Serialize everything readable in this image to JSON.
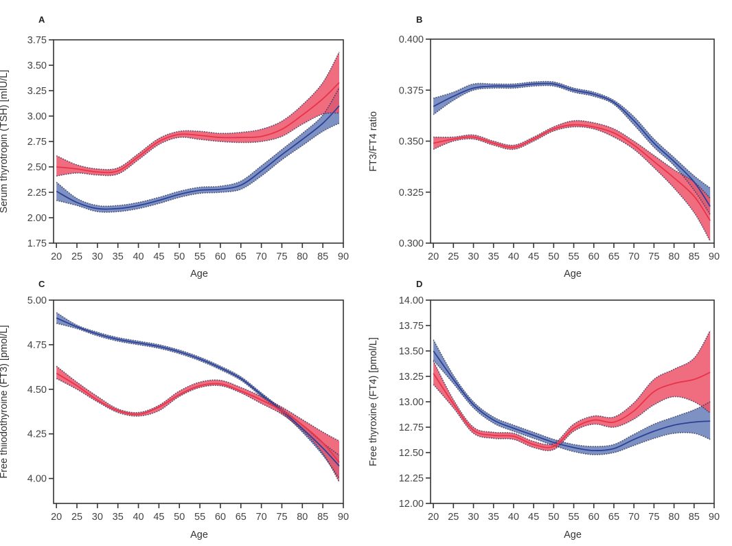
{
  "figure": {
    "colors": {
      "series_red": "#e8334a",
      "band_red": "#ec5468",
      "series_blue": "#2d3f96",
      "band_blue": "#6f86bd",
      "band_overlap": "#d95ab0",
      "dots": "#2b2f55"
    }
  },
  "chart_data": [
    {
      "id": "A",
      "panel_label": "A",
      "type": "line",
      "title": "",
      "xlabel": "Age",
      "ylabel": "Serum thyrotropin (TSH) [mIU/L]",
      "xlim": [
        19.3,
        90
      ],
      "ylim": [
        1.75,
        3.75
      ],
      "xticks": [
        "20",
        "25",
        "30",
        "35",
        "40",
        "45",
        "50",
        "55",
        "60",
        "65",
        "70",
        "75",
        "80",
        "85",
        "90"
      ],
      "yticks": [
        "1.75",
        "2.00",
        "2.25",
        "2.50",
        "2.75",
        "3.00",
        "3.25",
        "3.50",
        "3.75"
      ],
      "x": [
        20,
        25,
        30,
        35,
        40,
        45,
        50,
        55,
        60,
        65,
        70,
        75,
        80,
        85,
        89
      ],
      "series": [
        {
          "name": "red",
          "values": [
            2.5,
            2.48,
            2.45,
            2.46,
            2.6,
            2.75,
            2.82,
            2.81,
            2.79,
            2.79,
            2.8,
            2.87,
            3.01,
            3.17,
            3.33
          ],
          "ci_lower": [
            2.41,
            2.44,
            2.42,
            2.43,
            2.57,
            2.72,
            2.79,
            2.77,
            2.75,
            2.74,
            2.75,
            2.8,
            2.92,
            3.02,
            3.03
          ],
          "ci_upper": [
            2.61,
            2.52,
            2.48,
            2.49,
            2.63,
            2.78,
            2.85,
            2.85,
            2.83,
            2.84,
            2.87,
            2.95,
            3.11,
            3.33,
            3.63
          ]
        },
        {
          "name": "blue",
          "values": [
            2.26,
            2.15,
            2.09,
            2.09,
            2.12,
            2.17,
            2.23,
            2.27,
            2.28,
            2.32,
            2.46,
            2.62,
            2.77,
            2.93,
            3.1
          ],
          "ci_lower": [
            2.17,
            2.12,
            2.06,
            2.06,
            2.09,
            2.14,
            2.2,
            2.24,
            2.25,
            2.28,
            2.41,
            2.57,
            2.71,
            2.85,
            2.93
          ],
          "ci_upper": [
            2.35,
            2.19,
            2.12,
            2.12,
            2.15,
            2.2,
            2.26,
            2.3,
            2.31,
            2.36,
            2.51,
            2.67,
            2.83,
            3.01,
            3.28
          ]
        }
      ]
    },
    {
      "id": "B",
      "panel_label": "B",
      "type": "line",
      "title": "",
      "xlabel": "Age",
      "ylabel": "FT3/FT4 ratio",
      "xlim": [
        19.3,
        90
      ],
      "ylim": [
        0.3,
        0.4
      ],
      "xticks": [
        "20",
        "25",
        "30",
        "35",
        "40",
        "45",
        "50",
        "55",
        "60",
        "65",
        "70",
        "75",
        "80",
        "85",
        "90"
      ],
      "yticks": [
        "0.300",
        "0.325",
        "0.350",
        "0.375",
        "0.400"
      ],
      "x": [
        20,
        25,
        30,
        35,
        40,
        45,
        50,
        55,
        60,
        65,
        70,
        75,
        80,
        85,
        89
      ],
      "series": [
        {
          "name": "red",
          "values": [
            0.349,
            0.351,
            0.352,
            0.349,
            0.347,
            0.351,
            0.356,
            0.358,
            0.357,
            0.354,
            0.348,
            0.34,
            0.332,
            0.323,
            0.311
          ],
          "ci_lower": [
            0.346,
            0.35,
            0.351,
            0.348,
            0.346,
            0.35,
            0.355,
            0.357,
            0.356,
            0.352,
            0.346,
            0.337,
            0.327,
            0.315,
            0.301
          ],
          "ci_upper": [
            0.352,
            0.352,
            0.353,
            0.35,
            0.348,
            0.352,
            0.357,
            0.36,
            0.359,
            0.356,
            0.35,
            0.343,
            0.336,
            0.33,
            0.322
          ]
        },
        {
          "name": "blue",
          "values": [
            0.367,
            0.372,
            0.376,
            0.377,
            0.377,
            0.378,
            0.378,
            0.375,
            0.373,
            0.369,
            0.36,
            0.349,
            0.34,
            0.33,
            0.318
          ],
          "ci_lower": [
            0.363,
            0.37,
            0.375,
            0.376,
            0.376,
            0.377,
            0.377,
            0.374,
            0.372,
            0.368,
            0.358,
            0.347,
            0.338,
            0.326,
            0.314
          ],
          "ci_upper": [
            0.371,
            0.374,
            0.378,
            0.378,
            0.378,
            0.379,
            0.379,
            0.376,
            0.374,
            0.37,
            0.362,
            0.351,
            0.342,
            0.333,
            0.327
          ]
        }
      ]
    },
    {
      "id": "C",
      "panel_label": "C",
      "type": "line",
      "title": "",
      "xlabel": "Age",
      "ylabel": "Free thiiodothyroine (FT3) [pmol/L]",
      "xlim": [
        19.3,
        90
      ],
      "ylim": [
        3.86,
        5.0
      ],
      "xticks": [
        "20",
        "25",
        "30",
        "35",
        "40",
        "45",
        "50",
        "55",
        "60",
        "65",
        "70",
        "75",
        "80",
        "85",
        "90"
      ],
      "yticks": [
        "4.00",
        "4.25",
        "4.50",
        "4.75",
        "5.00"
      ],
      "x": [
        20,
        25,
        30,
        35,
        40,
        45,
        50,
        55,
        60,
        65,
        70,
        75,
        80,
        85,
        89
      ],
      "series": [
        {
          "name": "red",
          "values": [
            4.59,
            4.52,
            4.44,
            4.38,
            4.36,
            4.4,
            4.47,
            4.52,
            4.53,
            4.49,
            4.44,
            4.38,
            4.3,
            4.2,
            4.09
          ],
          "ci_lower": [
            4.56,
            4.5,
            4.43,
            4.37,
            4.35,
            4.38,
            4.46,
            4.51,
            4.52,
            4.48,
            4.42,
            4.36,
            4.27,
            4.14,
            3.98
          ],
          "ci_upper": [
            4.63,
            4.54,
            4.46,
            4.39,
            4.37,
            4.41,
            4.49,
            4.54,
            4.55,
            4.51,
            4.46,
            4.4,
            4.33,
            4.26,
            4.21
          ]
        },
        {
          "name": "blue",
          "values": [
            4.9,
            4.85,
            4.81,
            4.78,
            4.76,
            4.74,
            4.71,
            4.67,
            4.62,
            4.56,
            4.47,
            4.38,
            4.28,
            4.17,
            4.07
          ],
          "ci_lower": [
            4.87,
            4.84,
            4.8,
            4.77,
            4.75,
            4.73,
            4.7,
            4.66,
            4.61,
            4.55,
            4.46,
            4.37,
            4.26,
            4.13,
            4.0
          ],
          "ci_upper": [
            4.93,
            4.86,
            4.82,
            4.79,
            4.77,
            4.75,
            4.72,
            4.68,
            4.63,
            4.57,
            4.48,
            4.39,
            4.3,
            4.2,
            4.13
          ]
        }
      ]
    },
    {
      "id": "D",
      "panel_label": "D",
      "type": "line",
      "title": "",
      "xlabel": "Age",
      "ylabel": "Free thyroxine (FT4) [pmol/L]",
      "xlim": [
        19.3,
        90
      ],
      "ylim": [
        12.0,
        14.0
      ],
      "xticks": [
        "20",
        "25",
        "30",
        "35",
        "40",
        "45",
        "50",
        "55",
        "60",
        "65",
        "70",
        "75",
        "80",
        "85",
        "90"
      ],
      "yticks": [
        "12.00",
        "12.25",
        "12.50",
        "12.75",
        "13.00",
        "13.25",
        "13.50",
        "13.75",
        "14.00"
      ],
      "x": [
        20,
        25,
        30,
        35,
        40,
        45,
        50,
        55,
        60,
        65,
        70,
        75,
        80,
        85,
        89
      ],
      "series": [
        {
          "name": "red",
          "values": [
            13.28,
            12.98,
            12.72,
            12.67,
            12.66,
            12.58,
            12.56,
            12.74,
            12.82,
            12.8,
            12.91,
            13.1,
            13.18,
            13.22,
            13.29
          ],
          "ci_lower": [
            13.17,
            12.94,
            12.69,
            12.64,
            12.63,
            12.55,
            12.53,
            12.71,
            12.78,
            12.75,
            12.83,
            12.97,
            13.05,
            13.0,
            12.89
          ],
          "ci_upper": [
            13.4,
            13.02,
            12.75,
            12.7,
            12.69,
            12.61,
            12.59,
            12.78,
            12.86,
            12.85,
            12.99,
            13.22,
            13.32,
            13.43,
            13.7
          ]
        },
        {
          "name": "blue",
          "values": [
            13.5,
            13.22,
            12.97,
            12.82,
            12.74,
            12.67,
            12.6,
            12.55,
            12.52,
            12.54,
            12.63,
            12.71,
            12.77,
            12.8,
            12.81
          ],
          "ci_lower": [
            13.41,
            13.18,
            12.94,
            12.79,
            12.71,
            12.64,
            12.57,
            12.51,
            12.48,
            12.5,
            12.57,
            12.64,
            12.69,
            12.69,
            12.63
          ],
          "ci_upper": [
            13.61,
            13.26,
            13.0,
            12.85,
            12.77,
            12.7,
            12.63,
            12.58,
            12.56,
            12.58,
            12.68,
            12.78,
            12.85,
            12.92,
            13.0
          ]
        }
      ]
    }
  ]
}
